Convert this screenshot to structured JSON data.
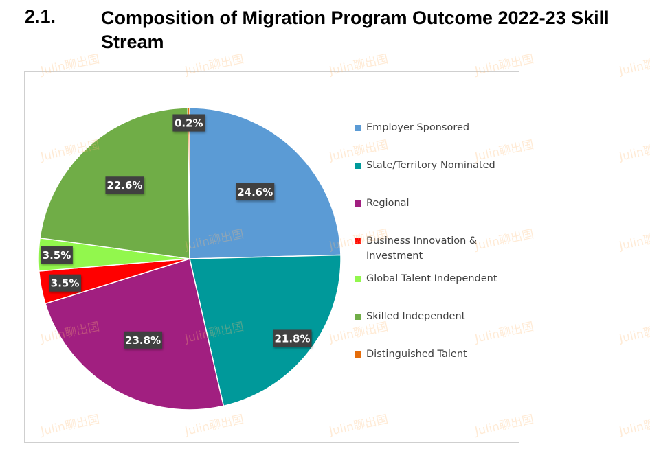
{
  "heading": {
    "number": "2.1.",
    "title": "Composition of Migration Program Outcome 2022-23 Skill Stream"
  },
  "watermark_text": "Julin聊出国",
  "chart_data": {
    "type": "pie",
    "title": "",
    "legend_position": "right",
    "slices": [
      {
        "label": "Employer Sponsored",
        "value": 24.6,
        "display": "24.6%",
        "color": "#5b9bd5"
      },
      {
        "label": "State/Territory Nominated",
        "value": 21.8,
        "display": "21.8%",
        "color": "#00999a"
      },
      {
        "label": "Regional",
        "value": 23.8,
        "display": "23.8%",
        "color": "#a11f80"
      },
      {
        "label": "Business Innovation & Investment",
        "value": 3.5,
        "display": "3.5%",
        "color": "#ff0000"
      },
      {
        "label": "Global Talent Independent",
        "value": 3.5,
        "display": "3.5%",
        "color": "#92f74d"
      },
      {
        "label": "Skilled Independent",
        "value": 22.6,
        "display": "22.6%",
        "color": "#70ad47"
      },
      {
        "label": "Distinguished Talent",
        "value": 0.2,
        "display": "0.2%",
        "color": "#e46c0a"
      }
    ]
  }
}
